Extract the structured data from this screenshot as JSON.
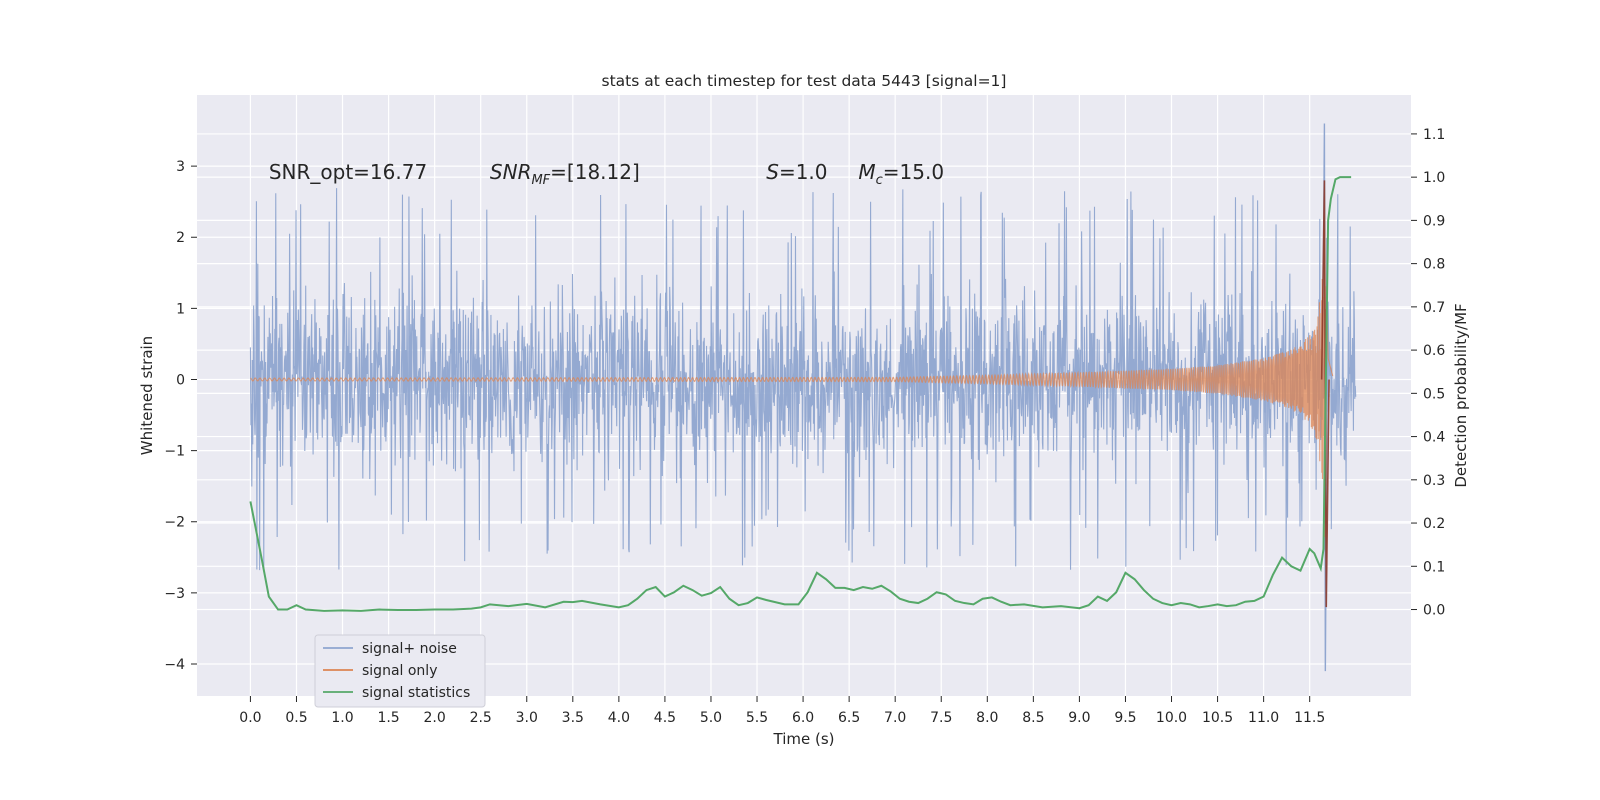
{
  "chart_data": {
    "type": "line",
    "title": "stats at each timestep for test data 5443 [signal=1]",
    "xlabel": "Time (s)",
    "ylabel_left": "Whitened strain",
    "ylabel_right": "Detection probability/MF",
    "xlim": [
      -0.58,
      12.6
    ],
    "ylim_left": [
      -4.45,
      4.0
    ],
    "ylim_right": [
      -0.2,
      1.19
    ],
    "x_ticks": [
      0.0,
      0.5,
      1.0,
      1.5,
      2.0,
      2.5,
      3.0,
      3.5,
      4.0,
      4.5,
      5.0,
      5.5,
      6.0,
      6.5,
      7.0,
      7.5,
      8.0,
      8.5,
      9.0,
      9.5,
      10.0,
      10.5,
      11.0,
      11.5
    ],
    "x_tick_labels": [
      "0.0",
      "0.5",
      "1.0",
      "1.5",
      "2.0",
      "2.5",
      "3.0",
      "3.5",
      "4.0",
      "4.5",
      "5.0",
      "5.5",
      "6.0",
      "6.5",
      "7.0",
      "7.5",
      "8.0",
      "8.5",
      "9.0",
      "9.5",
      "10.0",
      "10.5",
      "11.0",
      "11.5"
    ],
    "y_left_ticks": [
      3,
      2,
      1,
      0,
      -1,
      -2,
      -3,
      -4
    ],
    "y_left_tick_labels": [
      "3",
      "2",
      "1",
      "0",
      "−1",
      "−2",
      "−3",
      "−4"
    ],
    "y_right_ticks": [
      1.1,
      1.0,
      0.9,
      0.8,
      0.7,
      0.6,
      0.5,
      0.4,
      0.3,
      0.2,
      0.1,
      0.0
    ],
    "y_right_tick_labels": [
      "1.1",
      "1.0",
      "0.9",
      "0.8",
      "0.7",
      "0.6",
      "0.5",
      "0.4",
      "0.3",
      "0.2",
      "0.1",
      "0.0"
    ],
    "grid": true,
    "legend_position": "lower-left",
    "annotations": [
      {
        "text": "SNR_opt=16.77",
        "x": 0.2,
        "y": 2.9
      },
      {
        "text": "SNR_MF=[18.12]",
        "x": 2.6,
        "y": 2.9
      },
      {
        "text": "S=1.0",
        "x": 5.6,
        "y": 2.9
      },
      {
        "text": "M_c=15.0",
        "x": 6.6,
        "y": 2.9
      }
    ],
    "series": [
      {
        "name": "signal+ noise",
        "axis": "left",
        "color": "#8fa5cf",
        "kind": "noise-envelope",
        "x_range": [
          0.0,
          12.0
        ],
        "typical_amplitude": 1.5,
        "peak_max": 3.6,
        "peak_min": -4.1
      },
      {
        "name": "signal only",
        "axis": "left",
        "color": "#dd8452",
        "kind": "chirp-envelope",
        "x_range": [
          0.0,
          11.75
        ],
        "merger_time": 11.66,
        "envelope_x": [
          0.0,
          7.0,
          8.0,
          9.0,
          10.0,
          10.5,
          11.0,
          11.3,
          11.5,
          11.6,
          11.66,
          11.7,
          11.75
        ],
        "envelope_y": [
          0.02,
          0.03,
          0.06,
          0.1,
          0.15,
          0.2,
          0.3,
          0.42,
          0.62,
          0.95,
          2.5,
          0.3,
          0.05
        ]
      },
      {
        "name": "signal statistics",
        "axis": "right",
        "color": "#55a868",
        "x": [
          0.0,
          0.12,
          0.2,
          0.3,
          0.4,
          0.5,
          0.6,
          0.8,
          1.0,
          1.2,
          1.4,
          1.6,
          1.8,
          2.0,
          2.2,
          2.4,
          2.5,
          2.6,
          2.8,
          3.0,
          3.2,
          3.4,
          3.5,
          3.6,
          3.8,
          4.0,
          4.1,
          4.2,
          4.3,
          4.4,
          4.5,
          4.6,
          4.7,
          4.8,
          4.9,
          5.0,
          5.1,
          5.2,
          5.3,
          5.4,
          5.5,
          5.6,
          5.8,
          5.95,
          6.05,
          6.15,
          6.25,
          6.35,
          6.45,
          6.55,
          6.65,
          6.75,
          6.85,
          6.95,
          7.05,
          7.15,
          7.25,
          7.35,
          7.45,
          7.55,
          7.65,
          7.75,
          7.85,
          7.95,
          8.05,
          8.15,
          8.25,
          8.4,
          8.6,
          8.8,
          9.0,
          9.1,
          9.2,
          9.3,
          9.4,
          9.5,
          9.6,
          9.7,
          9.8,
          9.9,
          10.0,
          10.1,
          10.2,
          10.3,
          10.4,
          10.5,
          10.6,
          10.7,
          10.8,
          10.9,
          11.0,
          11.1,
          11.2,
          11.3,
          11.4,
          11.5,
          11.55,
          11.62,
          11.65,
          11.7,
          11.73,
          11.78,
          11.83,
          11.9,
          11.95
        ],
        "y": [
          0.25,
          0.12,
          0.03,
          0.0,
          0.0,
          0.01,
          0.0,
          -0.003,
          -0.002,
          -0.003,
          0.0,
          -0.001,
          -0.001,
          0.0,
          0.0,
          0.002,
          0.005,
          0.012,
          0.008,
          0.013,
          0.005,
          0.018,
          0.017,
          0.02,
          0.012,
          0.005,
          0.01,
          0.025,
          0.045,
          0.052,
          0.03,
          0.04,
          0.055,
          0.045,
          0.032,
          0.038,
          0.052,
          0.025,
          0.01,
          0.015,
          0.028,
          0.022,
          0.012,
          0.012,
          0.04,
          0.085,
          0.07,
          0.05,
          0.05,
          0.045,
          0.052,
          0.048,
          0.055,
          0.042,
          0.025,
          0.018,
          0.015,
          0.025,
          0.04,
          0.035,
          0.02,
          0.015,
          0.012,
          0.025,
          0.028,
          0.018,
          0.01,
          0.012,
          0.005,
          0.008,
          0.003,
          0.01,
          0.03,
          0.02,
          0.04,
          0.085,
          0.07,
          0.045,
          0.025,
          0.015,
          0.01,
          0.015,
          0.012,
          0.005,
          0.008,
          0.012,
          0.008,
          0.01,
          0.018,
          0.02,
          0.03,
          0.08,
          0.12,
          0.1,
          0.09,
          0.14,
          0.13,
          0.095,
          0.14,
          0.9,
          0.95,
          0.995,
          1.0,
          1.0,
          1.0
        ]
      }
    ]
  }
}
